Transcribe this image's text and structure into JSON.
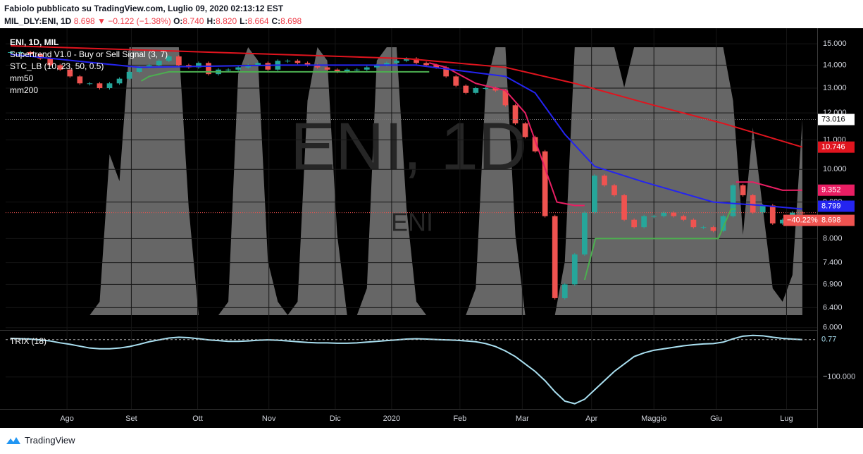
{
  "header": {
    "line1": "Fabiolo pubblicato su TradingView.com, Luglio 09, 2020 02:13:12 EST",
    "symbol": "MIL_DLY:ENI, 1D",
    "last": "8.698",
    "arrow": "▼",
    "change": "−0.122 (−1.38%)",
    "ohlc": [
      {
        "k": "O:",
        "v": "8.740"
      },
      {
        "k": "H:",
        "v": "8.820"
      },
      {
        "k": "L:",
        "v": "8.664"
      },
      {
        "k": "C:",
        "v": "8.698"
      }
    ]
  },
  "footer": {
    "brand": "TradingView"
  },
  "chart_data": {
    "type": "candlestick",
    "title": "ENI, 1D, MIL",
    "watermark": "ENI, 1D",
    "watermark_sub": "ENI",
    "xlim": [
      -0.5,
      81.5
    ],
    "xticks": [
      {
        "value": 5.7,
        "label": "Ago"
      },
      {
        "value": 12.2,
        "label": "Set"
      },
      {
        "value": 18.9,
        "label": "Ott"
      },
      {
        "value": 26.1,
        "label": "Nov"
      },
      {
        "value": 32.8,
        "label": "Dic"
      },
      {
        "value": 38.5,
        "label": "2020"
      },
      {
        "value": 45.4,
        "label": "Feb"
      },
      {
        "value": 51.7,
        "label": "Mar"
      },
      {
        "value": 58.7,
        "label": "Apr"
      },
      {
        "value": 65.0,
        "label": "Maggio"
      },
      {
        "value": 71.3,
        "label": "Giu"
      },
      {
        "value": 78.4,
        "label": "Lug"
      }
    ],
    "ylim": [
      5.97,
      15.63
    ],
    "log_scale": true,
    "yticks": [
      {
        "value": 15,
        "label": "15.000"
      },
      {
        "value": 14,
        "label": "14.000"
      },
      {
        "value": 13,
        "label": "13.000"
      },
      {
        "value": 12,
        "label": "12.000"
      },
      {
        "value": 11,
        "label": "11.000"
      },
      {
        "value": 10,
        "label": "10.000"
      },
      {
        "value": 9,
        "label": "9.000"
      },
      {
        "value": 8,
        "label": "8.000"
      },
      {
        "value": 7.4,
        "label": "7.400"
      },
      {
        "value": 6.9,
        "label": "6.900"
      },
      {
        "value": 6.4,
        "label": "6.400"
      },
      {
        "value": 6,
        "label": "6.000"
      }
    ],
    "close": {
      "up_color": "#26a69a",
      "down_color": "#ef5350",
      "change_label": "−40.22%",
      "values": [
        14.6,
        14.6,
        14.5,
        14.3,
        14.0,
        13.8,
        13.5,
        13.2,
        13.2,
        13.0,
        13.2,
        13.4,
        13.7,
        13.9,
        14.0,
        14.2,
        14.4,
        14.0,
        13.9,
        14.1,
        13.6,
        13.8,
        13.8,
        13.9,
        14.0,
        14.1,
        13.8,
        14.2,
        14.2,
        14.1,
        14.0,
        13.9,
        13.8,
        13.7,
        13.8,
        13.8,
        13.9,
        14.0,
        14.1,
        14.2,
        14.3,
        14.1,
        14.0,
        13.9,
        13.5,
        13.1,
        12.8,
        13.0,
        13.0,
        12.9,
        12.3,
        11.6,
        11.1,
        10.6,
        8.6,
        6.6,
        6.9,
        7.6,
        8.7,
        9.8,
        9.5,
        9.2,
        8.5,
        8.3,
        8.6,
        8.6,
        8.7,
        8.6,
        8.5,
        8.3,
        8.3,
        8.2,
        8.6,
        9.5,
        9.2,
        8.7,
        8.9,
        8.4,
        8.5,
        8.7,
        8.698
      ]
    },
    "series": [
      {
        "name": "mm50",
        "color": "#2424f0",
        "x": [
          0,
          13,
          27,
          41,
          50,
          53,
          56,
          59,
          64,
          71,
          76,
          80
        ],
        "values": [
          14.5,
          13.9,
          14.0,
          14.0,
          13.5,
          12.8,
          11.2,
          10.1,
          9.6,
          9.0,
          8.9,
          8.799
        ]
      },
      {
        "name": "mm200",
        "color": "#e0141e",
        "x": [
          0,
          10,
          20,
          30,
          40,
          50,
          57,
          65,
          72,
          80
        ],
        "values": [
          14.9,
          14.75,
          14.6,
          14.45,
          14.3,
          13.9,
          13.2,
          12.3,
          11.6,
          10.746
        ]
      }
    ],
    "supertrend": {
      "name": "Supertrend V1.0 - Buy or Sell Signal (3, 7)",
      "segments": [
        {
          "color": "#4caf50",
          "x": [
            13.2,
            14,
            16,
            42.3
          ],
          "values": [
            13.3,
            13.5,
            13.7,
            13.7
          ]
        },
        {
          "color": "#e91e63",
          "x": [
            42.3,
            44,
            47,
            50,
            52,
            53.5,
            55.2,
            57,
            58
          ],
          "values": [
            14.1,
            13.9,
            13.2,
            12.9,
            12.0,
            10.5,
            9.0,
            8.9,
            8.9
          ]
        },
        {
          "color": "#4caf50",
          "x": [
            58,
            59.1,
            71.5,
            72.8,
            73.3
          ],
          "values": [
            7.0,
            8.0,
            8.0,
            8.8,
            8.8
          ]
        },
        {
          "color": "#e91e63",
          "x": [
            73.3,
            75,
            78,
            80
          ],
          "values": [
            9.6,
            9.6,
            9.35,
            9.352
          ]
        }
      ]
    },
    "stc": {
      "name": "STC_LB (10, 23, 50, 0.5)",
      "color": "#666666",
      "values": [
        0,
        0,
        0,
        0,
        0,
        0,
        0,
        0,
        0,
        5,
        60,
        50,
        100,
        100,
        100,
        100,
        100,
        100,
        40,
        0,
        0,
        0,
        5,
        90,
        100,
        95,
        20,
        5,
        0,
        5,
        80,
        100,
        95,
        30,
        0,
        0,
        10,
        95,
        100,
        100,
        40,
        5,
        0,
        0,
        0,
        0,
        0,
        10,
        85,
        100,
        100,
        30,
        0,
        0,
        0,
        0,
        20,
        100,
        100,
        100,
        100,
        100,
        85,
        100,
        100,
        100,
        100,
        100,
        100,
        100,
        100,
        100,
        100,
        80,
        30,
        70,
        40,
        10,
        5,
        15,
        73.016
      ]
    },
    "trix": {
      "name": "TRIX (18)",
      "color": "#a9dff0",
      "ylim": [
        -186,
        23
      ],
      "yticks": [
        {
          "value": -100,
          "label": "−100.000"
        }
      ],
      "values": [
        4,
        3,
        2,
        0,
        -3,
        -8,
        -12,
        -17,
        -22,
        -24,
        -24,
        -22,
        -18,
        -12,
        -5,
        0,
        5,
        7,
        6,
        3,
        0,
        -2,
        -4,
        -4,
        -3,
        -1,
        0,
        -1,
        -3,
        -5,
        -7,
        -8,
        -8,
        -9,
        -9,
        -8,
        -6,
        -4,
        -2,
        0,
        2,
        3,
        2,
        1,
        0,
        -1,
        -3,
        -5,
        -10,
        -18,
        -30,
        -45,
        -65,
        -85,
        -110,
        -140,
        -165,
        -172,
        -160,
        -135,
        -110,
        -85,
        -65,
        -45,
        -35,
        -28,
        -24,
        -20,
        -16,
        -13,
        -11,
        -10,
        -6,
        3,
        10,
        12,
        11,
        7,
        4,
        2,
        0.77
      ]
    }
  }
}
